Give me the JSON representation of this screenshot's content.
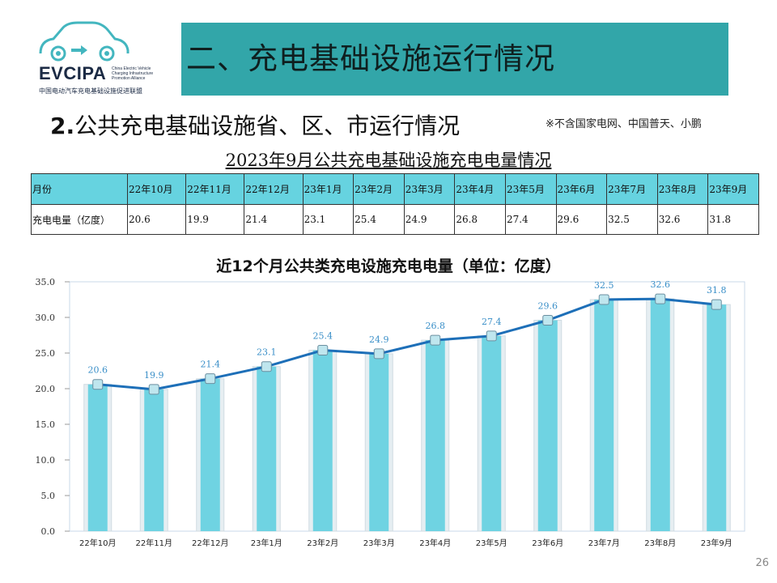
{
  "logo": {
    "abbr": "EVCIPA",
    "en_lines": [
      "China Electric Vehicle",
      "Charging Infrastructure",
      "Promotion Alliance"
    ],
    "cn_name": "中国电动汽车充电基础设施促进联盟"
  },
  "header": {
    "title": "二、充电基础设施运行情况"
  },
  "section": {
    "number": "2.",
    "title": "公共充电基础设施省、区、市运行情况",
    "note": "※不含国家电网、中国普天、小鹏"
  },
  "table": {
    "title": "2023年9月公共充电基础设施充电电量情况",
    "row1_label": "月份",
    "row2_label": "充电电量（亿度）",
    "months": [
      "22年10月",
      "22年11月",
      "22年12月",
      "23年1月",
      "23年2月",
      "23年3月",
      "23年4月",
      "23年5月",
      "23年6月",
      "23年7月",
      "23年8月",
      "23年9月"
    ],
    "values": [
      "20.6",
      "19.9",
      "21.4",
      "23.1",
      "25.4",
      "24.9",
      "26.8",
      "27.4",
      "29.6",
      "32.5",
      "32.6",
      "31.8"
    ]
  },
  "chart_data": {
    "type": "bar",
    "title": "近12个月公共类充电设施充电电量（单位：亿度）",
    "categories": [
      "22年10月",
      "22年11月",
      "22年12月",
      "23年1月",
      "23年2月",
      "23年3月",
      "23年4月",
      "23年5月",
      "23年6月",
      "23年7月",
      "23年8月",
      "23年9月"
    ],
    "values": [
      20.6,
      19.9,
      21.4,
      23.1,
      25.4,
      24.9,
      26.8,
      27.4,
      29.6,
      32.5,
      32.6,
      31.8
    ],
    "overlay": "line with markers over bars, same values",
    "ylim": [
      0,
      35
    ],
    "yticks": [
      "0.0",
      "5.0",
      "10.0",
      "15.0",
      "20.0",
      "25.0",
      "30.0",
      "35.0"
    ],
    "grid": false,
    "legend": "none",
    "colors": {
      "bar": "#6fd3e2",
      "line": "#1d6fb8",
      "label": "#3a8fc8"
    }
  },
  "footer": {
    "page_number": "26"
  }
}
